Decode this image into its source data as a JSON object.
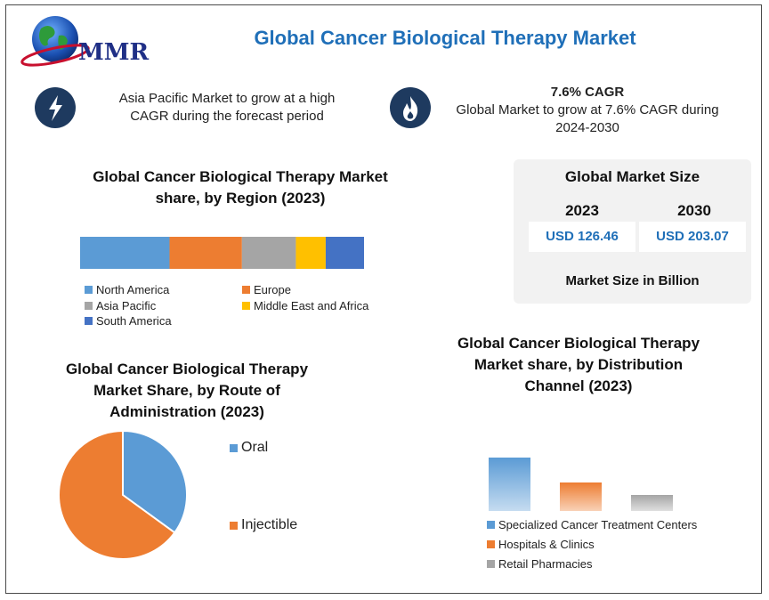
{
  "brand": {
    "logo_text": "MMR"
  },
  "title": "Global Cancer Biological Therapy Market",
  "highlights": [
    {
      "icon": "lightning-icon",
      "heading": "",
      "text_line1": "Asia Pacific Market to grow at a high",
      "text_line2": "CAGR during the forecast period"
    },
    {
      "icon": "flame-icon",
      "heading": "7.6% CAGR",
      "text_line1": "Global Market to grow at 7.6% CAGR during",
      "text_line2": "2024-2030"
    }
  ],
  "market_size": {
    "title": "Global Market Size",
    "years": [
      "2023",
      "2030"
    ],
    "values": [
      "USD 126.46",
      "USD 203.07"
    ],
    "footer": "Market Size in Billion"
  },
  "colors": {
    "blue": "#5b9bd5",
    "orange": "#ed7d31",
    "gray": "#a5a5a5",
    "yellow": "#ffc000",
    "dark_blue": "#4472c4",
    "title_blue": "#1f6fb8"
  },
  "chart_data": [
    {
      "type": "bar",
      "orientation": "horizontal-stacked",
      "title_line1": "Global Cancer Biological Therapy Market",
      "title_line2": "share, by Region (2023)",
      "series": [
        {
          "name": "North America",
          "value": 31.5,
          "color": "#5b9bd5"
        },
        {
          "name": "Europe",
          "value": 25.5,
          "color": "#ed7d31"
        },
        {
          "name": "Asia Pacific",
          "value": 19,
          "color": "#a5a5a5"
        },
        {
          "name": "Middle East and Africa",
          "value": 10.5,
          "color": "#ffc000"
        },
        {
          "name": "South America",
          "value": 13.5,
          "color": "#4472c4"
        }
      ],
      "legend": "bottom"
    },
    {
      "type": "pie",
      "title_line1": "Global Cancer Biological Therapy",
      "title_line2": "Market Share, by Route of",
      "title_line3": "Administration (2023)",
      "slices": [
        {
          "name": "Oral",
          "value": 35,
          "color": "#5b9bd5"
        },
        {
          "name": "Injectible",
          "value": 65,
          "color": "#ed7d31"
        }
      ],
      "legend": "right"
    },
    {
      "type": "bar",
      "title_line1": "Global Cancer Biological Therapy",
      "title_line2": "Market share, by Distribution",
      "title_line3": "Channel (2023)",
      "categories": [
        "Specialized Cancer Treatment Centers",
        "Hospitals & Clinics",
        "Retail Pharmacies"
      ],
      "values": [
        60,
        32,
        18
      ],
      "colors": [
        "#5b9bd5",
        "#ed7d31",
        "#a5a5a5"
      ],
      "legend": "bottom"
    }
  ]
}
